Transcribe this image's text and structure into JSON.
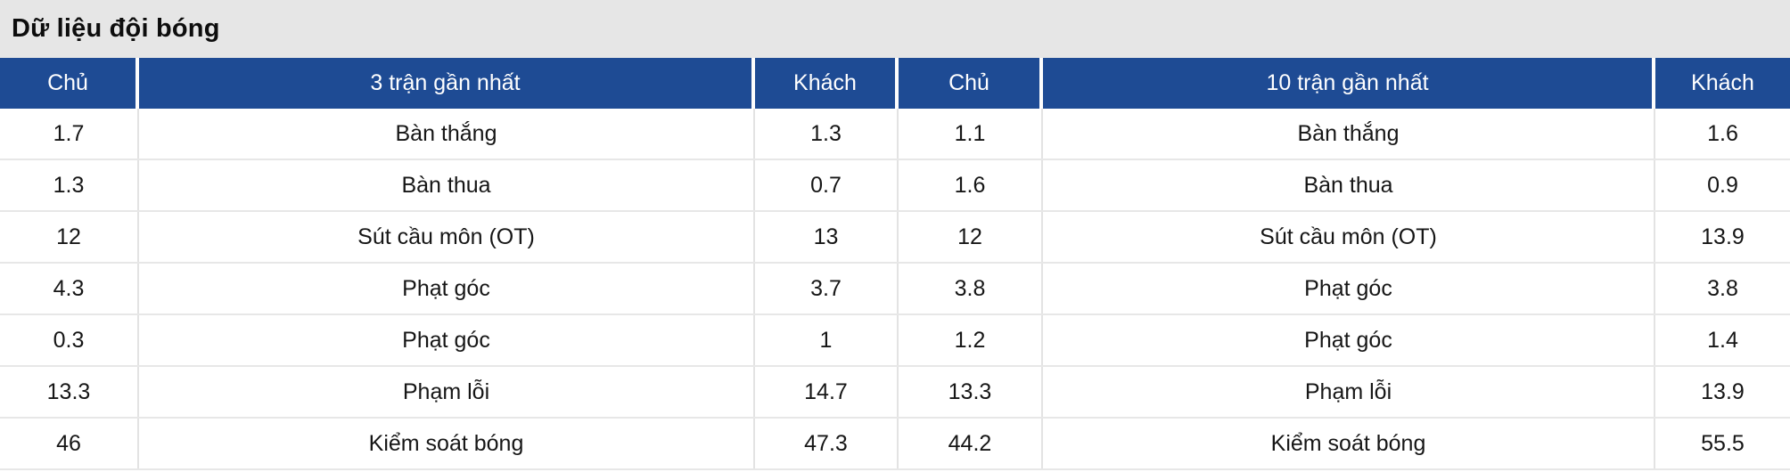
{
  "title": "Dữ liệu đội bóng",
  "colors": {
    "header_bg": "#1e4b94",
    "header_text": "#ffffff",
    "title_band_bg": "#e6e6e6",
    "row_bg": "#ffffff",
    "row_text": "#161616",
    "divider": "#e3e3e3"
  },
  "table": {
    "headers": [
      "Chủ",
      "3 trận gần nhất",
      "Khách",
      "Chủ",
      "10 trận gần nhất",
      "Khách"
    ],
    "rows": [
      {
        "home3": "1.7",
        "label3": "Bàn thắng",
        "away3": "1.3",
        "home10": "1.1",
        "label10": "Bàn thắng",
        "away10": "1.6"
      },
      {
        "home3": "1.3",
        "label3": "Bàn thua",
        "away3": "0.7",
        "home10": "1.6",
        "label10": "Bàn thua",
        "away10": "0.9"
      },
      {
        "home3": "12",
        "label3": "Sút cầu môn (OT)",
        "away3": "13",
        "home10": "12",
        "label10": "Sút cầu môn (OT)",
        "away10": "13.9"
      },
      {
        "home3": "4.3",
        "label3": "Phạt góc",
        "away3": "3.7",
        "home10": "3.8",
        "label10": "Phạt góc",
        "away10": "3.8"
      },
      {
        "home3": "0.3",
        "label3": "Phạt góc",
        "away3": "1",
        "home10": "1.2",
        "label10": "Phạt góc",
        "away10": "1.4"
      },
      {
        "home3": "13.3",
        "label3": "Phạm lỗi",
        "away3": "14.7",
        "home10": "13.3",
        "label10": "Phạm lỗi",
        "away10": "13.9"
      },
      {
        "home3": "46",
        "label3": "Kiểm soát bóng",
        "away3": "47.3",
        "home10": "44.2",
        "label10": "Kiểm soát bóng",
        "away10": "55.5"
      }
    ]
  }
}
